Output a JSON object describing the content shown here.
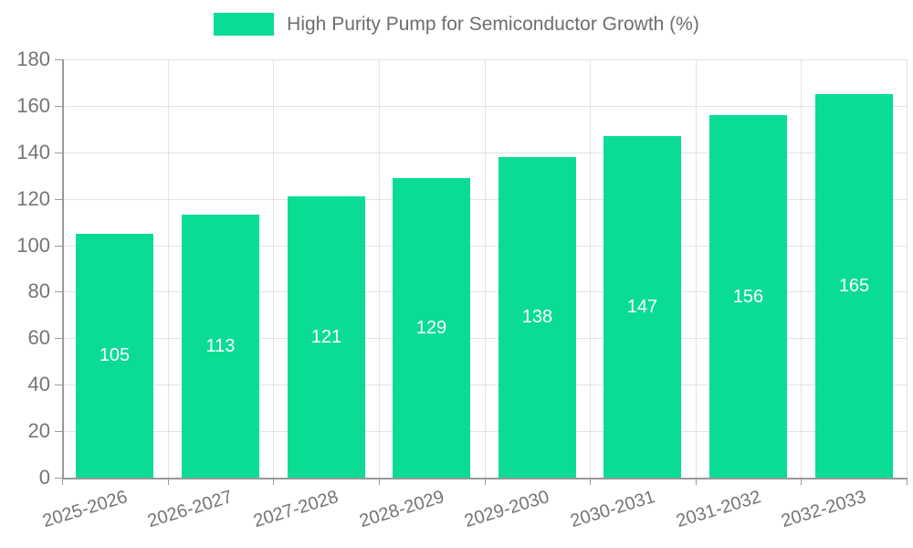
{
  "legend": {
    "label": "High Purity Pump for Semiconductor Growth (%)"
  },
  "colors": {
    "bar": "#0adc94",
    "axis_line": "#999999",
    "grid_line": "#e3e3e3",
    "tick_text": "#757575",
    "legend_text": "#6e6e6e",
    "value_label": "#ffffff",
    "background": "#ffffff"
  },
  "chart_data": {
    "type": "bar",
    "title": "High Purity Pump for Semiconductor Growth (%)",
    "categories": [
      "2025-2026",
      "2026-2027",
      "2027-2028",
      "2028-2029",
      "2029-2030",
      "2030-2031",
      "2031-2032",
      "2032-2033"
    ],
    "values": [
      105,
      113,
      121,
      129,
      138,
      147,
      156,
      165
    ],
    "xlabel": "",
    "ylabel": "",
    "ylim": [
      0,
      180
    ],
    "ytick_step": 20,
    "ytick_labels": [
      "0",
      "20",
      "40",
      "60",
      "80",
      "100",
      "120",
      "140",
      "160",
      "180"
    ],
    "grid": true,
    "legend_position": "top-center",
    "bar_value_labels_shown": true,
    "value_label_position": "inside-center"
  }
}
